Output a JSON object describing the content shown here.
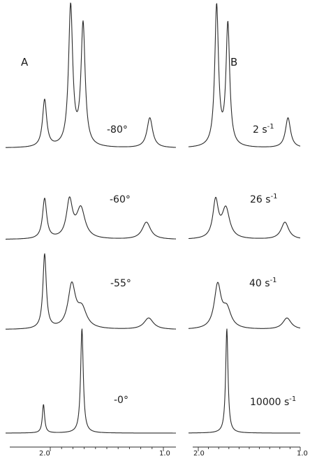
{
  "chart_data": {
    "type": "line",
    "title": "",
    "panels": [
      {
        "id": "A",
        "label": "A",
        "xlabel": "",
        "x_tick_labels": [
          "2.0",
          "1.0"
        ],
        "traces": [
          {
            "label": "-80°",
            "peaks": [
              {
                "x": 2.05,
                "height": 0.33,
                "width": 0.022
              },
              {
                "x": 1.82,
                "height": 0.98,
                "width": 0.022
              },
              {
                "x": 1.71,
                "height": 0.85,
                "width": 0.022
              },
              {
                "x": 1.12,
                "height": 0.21,
                "width": 0.03
              }
            ]
          },
          {
            "label": "-60°",
            "peaks": [
              {
                "x": 2.05,
                "height": 0.28,
                "width": 0.022
              },
              {
                "x": 1.83,
                "height": 0.26,
                "width": 0.032
              },
              {
                "x": 1.73,
                "height": 0.21,
                "width": 0.045
              },
              {
                "x": 1.15,
                "height": 0.12,
                "width": 0.045
              }
            ]
          },
          {
            "label": "-55°",
            "peaks": [
              {
                "x": 2.05,
                "height": 0.52,
                "width": 0.018
              },
              {
                "x": 1.81,
                "height": 0.3,
                "width": 0.04
              },
              {
                "x": 1.72,
                "height": 0.13,
                "width": 0.05
              },
              {
                "x": 1.13,
                "height": 0.08,
                "width": 0.05
              }
            ]
          },
          {
            "label": "-0°",
            "peaks": [
              {
                "x": 2.06,
                "height": 0.2,
                "width": 0.012
              },
              {
                "x": 1.72,
                "height": 0.73,
                "width": 0.014
              }
            ]
          }
        ]
      },
      {
        "id": "B",
        "label": "B",
        "xlabel": "",
        "x_tick_labels": [
          "2.0",
          "1.0"
        ],
        "traces": [
          {
            "label": "2 s",
            "rate_unit": "-1",
            "peaks": [
              {
                "x": 1.82,
                "height": 0.98,
                "width": 0.022
              },
              {
                "x": 1.71,
                "height": 0.85,
                "width": 0.022
              },
              {
                "x": 1.12,
                "height": 0.21,
                "width": 0.03
              }
            ]
          },
          {
            "label": "26 s",
            "rate_unit": "-1",
            "peaks": [
              {
                "x": 1.83,
                "height": 0.26,
                "width": 0.032
              },
              {
                "x": 1.73,
                "height": 0.21,
                "width": 0.045
              },
              {
                "x": 1.15,
                "height": 0.12,
                "width": 0.045
              }
            ]
          },
          {
            "label": "40 s",
            "rate_unit": "-1",
            "peaks": [
              {
                "x": 1.81,
                "height": 0.3,
                "width": 0.04
              },
              {
                "x": 1.72,
                "height": 0.13,
                "width": 0.05
              },
              {
                "x": 1.13,
                "height": 0.08,
                "width": 0.05
              }
            ]
          },
          {
            "label": "10000 s",
            "rate_unit": "-1",
            "peaks": [
              {
                "x": 1.72,
                "height": 0.73,
                "width": 0.014
              }
            ]
          }
        ]
      }
    ],
    "x_range": [
      2.2,
      0.98
    ],
    "x_reversed": true,
    "grid": false,
    "legend": "none",
    "line_color": "#2a2a2a"
  }
}
